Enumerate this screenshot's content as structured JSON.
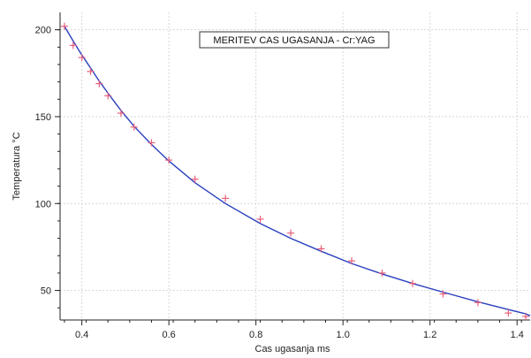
{
  "chart_data": {
    "type": "scatter",
    "title": "MERITEV CAS UGASANJA - Cr:YAG",
    "xlabel": "Cas ugasanja ms",
    "ylabel": "Temperatura °C",
    "xlim": [
      0.35,
      1.43
    ],
    "ylim": [
      33,
      210
    ],
    "x_ticks": [
      0.4,
      0.6,
      0.8,
      1.0,
      1.2,
      1.4
    ],
    "x_tick_labels": [
      "0.4",
      "0.6",
      "0.8",
      "1.0",
      "1.2",
      "1.4"
    ],
    "y_ticks": [
      50,
      100,
      150,
      200
    ],
    "y_tick_labels": [
      "50",
      "100",
      "150",
      "200"
    ],
    "grid": true,
    "series": [
      {
        "kind": "markers",
        "marker": "plus",
        "color": "#e8607a",
        "x": [
          0.36,
          0.38,
          0.4,
          0.42,
          0.44,
          0.46,
          0.49,
          0.52,
          0.56,
          0.6,
          0.66,
          0.73,
          0.81,
          0.88,
          0.95,
          1.02,
          1.09,
          1.16,
          1.23,
          1.31,
          1.38,
          1.42
        ],
        "y": [
          202,
          191,
          184,
          176,
          169,
          162,
          152,
          144,
          135,
          125,
          114,
          103,
          91,
          83,
          74,
          67,
          60,
          54,
          48,
          43,
          37,
          35
        ]
      },
      {
        "kind": "fit-line",
        "color": "#2a3fbf",
        "x": [
          0.36,
          0.38,
          0.4,
          0.42,
          0.44,
          0.46,
          0.49,
          0.52,
          0.56,
          0.6,
          0.66,
          0.73,
          0.81,
          0.88,
          0.95,
          1.02,
          1.09,
          1.16,
          1.23,
          1.31,
          1.38,
          1.42,
          1.43
        ],
        "y": [
          202,
          193.5,
          185.5,
          178,
          170.5,
          163.5,
          153.5,
          144.5,
          134,
          124.5,
          112,
          100,
          88.5,
          80,
          72.5,
          65.5,
          59.5,
          54,
          49,
          43.5,
          39,
          36.5,
          35.5
        ]
      }
    ]
  }
}
